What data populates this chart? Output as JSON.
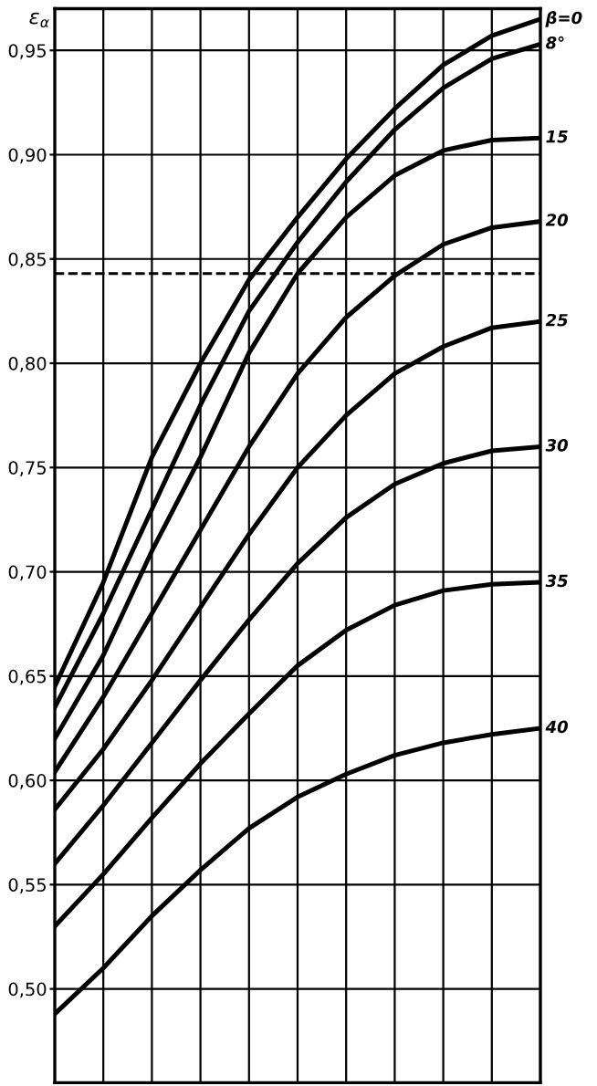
{
  "chart_data": {
    "type": "line",
    "ylabel": "ε$_{α}$",
    "categories": [
      null,
      null,
      null,
      null,
      null,
      null,
      null,
      null,
      null,
      null,
      null
    ],
    "series": [
      {
        "name": "β=0",
        "color": "#000000",
        "values": [
          0.645,
          0.695,
          0.755,
          0.8,
          0.84,
          0.87,
          0.898,
          0.922,
          0.943,
          0.957,
          0.965
        ]
      },
      {
        "name": "8°",
        "color": "#000000",
        "values": [
          0.635,
          0.68,
          0.73,
          0.78,
          0.825,
          0.858,
          0.887,
          0.912,
          0.932,
          0.946,
          0.953
        ]
      },
      {
        "name": "15",
        "color": "#000000",
        "values": [
          0.62,
          0.66,
          0.71,
          0.755,
          0.805,
          0.843,
          0.87,
          0.89,
          0.902,
          0.907,
          0.908
        ]
      },
      {
        "name": "20",
        "color": "#000000",
        "values": [
          0.604,
          0.64,
          0.68,
          0.72,
          0.76,
          0.795,
          0.822,
          0.842,
          0.857,
          0.865,
          0.868
        ]
      },
      {
        "name": "25",
        "color": "#000000",
        "values": [
          0.586,
          0.615,
          0.648,
          0.683,
          0.718,
          0.75,
          0.775,
          0.795,
          0.808,
          0.817,
          0.82
        ]
      },
      {
        "name": "30",
        "color": "#000000",
        "values": [
          0.56,
          0.588,
          0.618,
          0.648,
          0.677,
          0.704,
          0.726,
          0.742,
          0.752,
          0.758,
          0.76
        ]
      },
      {
        "name": "35",
        "color": "#000000",
        "values": [
          0.53,
          0.555,
          0.582,
          0.608,
          0.632,
          0.655,
          0.672,
          0.684,
          0.691,
          0.694,
          0.695
        ]
      },
      {
        "name": "40",
        "color": "#000000",
        "values": [
          0.488,
          0.51,
          0.535,
          0.557,
          0.577,
          0.592,
          0.603,
          0.612,
          0.618,
          0.622,
          0.625
        ]
      }
    ],
    "ylim": [
      0.455,
      0.97
    ],
    "yticks": [
      {
        "value": 0.5,
        "label": "0,50"
      },
      {
        "value": 0.55,
        "label": "0,55"
      },
      {
        "value": 0.6,
        "label": "0,60"
      },
      {
        "value": 0.65,
        "label": "0,65"
      },
      {
        "value": 0.7,
        "label": "0,70"
      },
      {
        "value": 0.75,
        "label": "0,75"
      },
      {
        "value": 0.8,
        "label": "0,80"
      },
      {
        "value": 0.85,
        "label": "0,85"
      },
      {
        "value": 0.9,
        "label": "0,90"
      },
      {
        "value": 0.95,
        "label": "0,95"
      }
    ],
    "ref_lines": [
      {
        "axis": "y",
        "value": 0.843,
        "color": "#000000",
        "line_style": "dashed"
      }
    ],
    "grid": true,
    "line_style": "solid",
    "marker": "none",
    "legend": false
  }
}
